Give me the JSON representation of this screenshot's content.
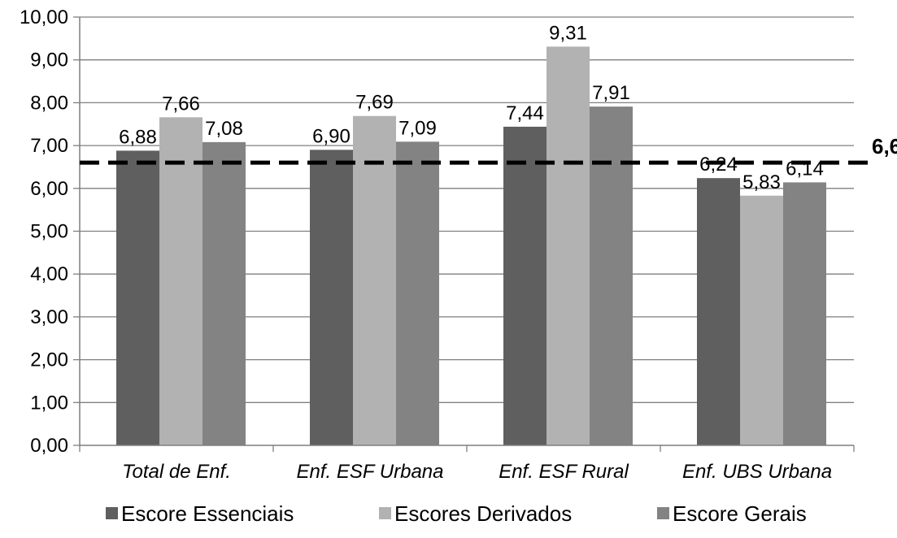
{
  "chart_data": {
    "type": "bar",
    "categories": [
      "Total de Enf.",
      "Enf. ESF Urbana",
      "Enf. ESF Rural",
      "Enf. UBS Urbana"
    ],
    "series": [
      {
        "name": "Escore Essenciais",
        "values": [
          6.88,
          6.9,
          7.44,
          6.24
        ],
        "labels": [
          "6,88",
          "6,90",
          "7,44",
          "6,24"
        ],
        "color": "#5f5f5f"
      },
      {
        "name": "Escores Derivados",
        "values": [
          7.66,
          7.69,
          9.31,
          5.83
        ],
        "labels": [
          "7,66",
          "7,69",
          "9,31",
          "5,83"
        ],
        "color": "#b2b2b2"
      },
      {
        "name": "Escore Gerais",
        "values": [
          7.08,
          7.09,
          7.91,
          6.14
        ],
        "labels": [
          "7,08",
          "7,09",
          "7,91",
          "6,14"
        ],
        "color": "#838383"
      }
    ],
    "ylim": [
      0,
      10
    ],
    "yticks": [
      "0,00",
      "1,00",
      "2,00",
      "3,00",
      "4,00",
      "5,00",
      "6,00",
      "7,00",
      "8,00",
      "9,00",
      "10,00"
    ],
    "reference_line": {
      "value": 6.6,
      "label": "6,6",
      "style": "dashed",
      "color": "#000000"
    },
    "grid": true,
    "legend_position": "bottom",
    "title": "",
    "xlabel": "",
    "ylabel": ""
  }
}
